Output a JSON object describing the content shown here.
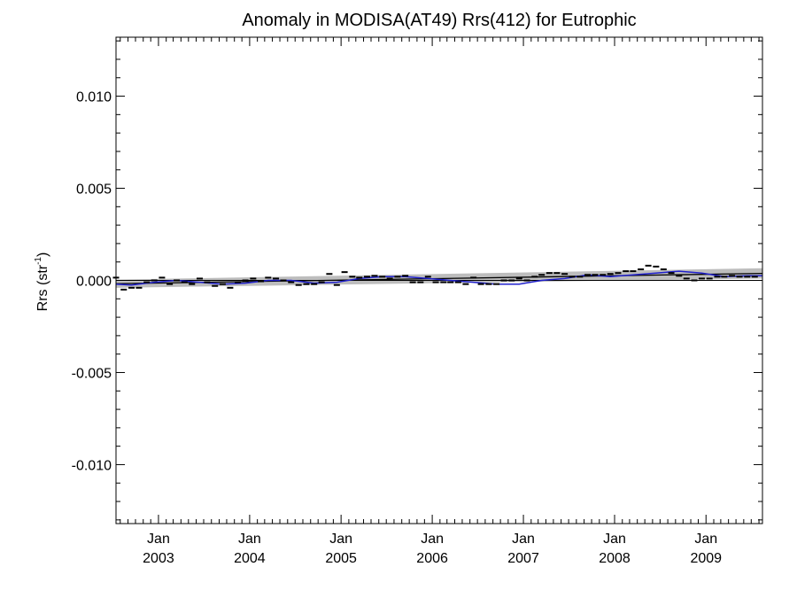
{
  "chart_data": {
    "type": "line",
    "title": "Anomaly in MODISA(AT49) Rrs(412) for Eutrophic",
    "ylabel": "Rrs (str",
    "ylabel_sup": "-1",
    "ylabel_close": ")",
    "xlabel": "",
    "xlim": [
      "2002-07-15",
      "2009-08-15"
    ],
    "ylim": [
      -0.0132,
      0.0132
    ],
    "y_ticks": [
      0.01,
      0.005,
      0.0,
      -0.005,
      -0.01
    ],
    "y_tick_labels": [
      "0.010",
      "0.005",
      "0.000",
      "-0.005",
      "-0.010"
    ],
    "x_ticks": [
      {
        "date": "2003-01-01",
        "month": "Jan",
        "year": "2003"
      },
      {
        "date": "2004-01-01",
        "month": "Jan",
        "year": "2004"
      },
      {
        "date": "2005-01-01",
        "month": "Jan",
        "year": "2005"
      },
      {
        "date": "2006-01-01",
        "month": "Jan",
        "year": "2006"
      },
      {
        "date": "2007-01-01",
        "month": "Jan",
        "year": "2007"
      },
      {
        "date": "2008-01-01",
        "month": "Jan",
        "year": "2008"
      },
      {
        "date": "2009-01-01",
        "month": "Jan",
        "year": "2009"
      }
    ],
    "grid": false,
    "zero_line": 0.0,
    "colors": {
      "smooth_line": "#2020cc",
      "trend_line": "#000000",
      "confidence_band": "#bdbdbd",
      "monthly_marker": "#000000",
      "axes": "#000000"
    },
    "series": [
      {
        "kind": "monthly_anomaly",
        "x": [
          "2002-07-15",
          "2002-08-15",
          "2002-09-15",
          "2002-10-15",
          "2002-11-15",
          "2002-12-15",
          "2003-01-15",
          "2003-02-15",
          "2003-03-15",
          "2003-04-15",
          "2003-05-15",
          "2003-06-15",
          "2003-07-15",
          "2003-08-15",
          "2003-09-15",
          "2003-10-15",
          "2003-11-15",
          "2003-12-15",
          "2004-01-15",
          "2004-02-15",
          "2004-03-15",
          "2004-04-15",
          "2004-05-15",
          "2004-06-15",
          "2004-07-15",
          "2004-08-15",
          "2004-09-15",
          "2004-10-15",
          "2004-11-15",
          "2004-12-15",
          "2005-01-15",
          "2005-02-15",
          "2005-03-15",
          "2005-04-15",
          "2005-05-15",
          "2005-06-15",
          "2005-07-15",
          "2005-08-15",
          "2005-09-15",
          "2005-10-15",
          "2005-11-15",
          "2005-12-15",
          "2006-01-15",
          "2006-02-15",
          "2006-03-15",
          "2006-04-15",
          "2006-05-15",
          "2006-06-15",
          "2006-07-15",
          "2006-08-15",
          "2006-09-15",
          "2006-10-15",
          "2006-11-15",
          "2006-12-15",
          "2007-01-15",
          "2007-02-15",
          "2007-03-15",
          "2007-04-15",
          "2007-05-15",
          "2007-06-15",
          "2007-07-15",
          "2007-08-15",
          "2007-09-15",
          "2007-10-15",
          "2007-11-15",
          "2007-12-15",
          "2008-01-15",
          "2008-02-15",
          "2008-03-15",
          "2008-04-15",
          "2008-05-15",
          "2008-06-15",
          "2008-07-15",
          "2008-08-15",
          "2008-09-15",
          "2008-10-15",
          "2008-11-15",
          "2008-12-15",
          "2009-01-15",
          "2009-02-15",
          "2009-03-15",
          "2009-04-15",
          "2009-05-15",
          "2009-06-15",
          "2009-07-15"
        ],
        "values": [
          0.00015,
          -0.0005,
          -0.0004,
          -0.0004,
          -0.0001,
          0.0,
          0.00015,
          -0.0002,
          0.0,
          -0.0001,
          -0.0002,
          0.0001,
          -0.0001,
          -0.0003,
          -0.0002,
          -0.0004,
          -0.0001,
          0.0,
          0.0001,
          -5e-05,
          0.00015,
          0.0001,
          0.0,
          -0.0001,
          -0.00025,
          -0.0002,
          -0.0002,
          -0.0001,
          0.00035,
          -0.00025,
          0.00045,
          0.0002,
          0.00015,
          0.0002,
          0.00025,
          0.0002,
          0.0001,
          0.0002,
          0.00025,
          -0.0001,
          -0.0001,
          0.0002,
          -0.0001,
          -0.0001,
          -0.0001,
          -0.0001,
          -0.0002,
          0.00015,
          -0.0002,
          -0.0002,
          -0.0002,
          0.0,
          0.0,
          0.0001,
          0.0,
          0.0002,
          0.0003,
          0.0004,
          0.0004,
          0.00035,
          0.0002,
          0.0002,
          0.0003,
          0.0003,
          0.0003,
          0.00035,
          0.0004,
          0.0005,
          0.0005,
          0.0006,
          0.0008,
          0.00075,
          0.0006,
          0.0004,
          0.00025,
          0.0001,
          0.0,
          0.0001,
          0.0001,
          0.0002,
          0.0002,
          0.00025,
          0.0002,
          0.0002,
          0.0002
        ]
      },
      {
        "kind": "smoothed",
        "x": [
          "2002-07-15",
          "2002-09-15",
          "2002-12-15",
          "2003-03-15",
          "2003-06-15",
          "2003-09-15",
          "2003-12-15",
          "2004-03-15",
          "2004-06-15",
          "2004-09-15",
          "2004-12-15",
          "2005-03-15",
          "2005-06-15",
          "2005-09-15",
          "2005-12-15",
          "2006-03-15",
          "2006-06-15",
          "2006-09-15",
          "2006-12-15",
          "2007-03-15",
          "2007-06-15",
          "2007-09-15",
          "2007-12-15",
          "2008-03-15",
          "2008-06-15",
          "2008-09-15",
          "2008-12-15",
          "2009-03-15",
          "2009-06-15",
          "2009-08-15"
        ],
        "values": [
          -0.0002,
          -0.00025,
          -0.0001,
          0.0,
          -0.0001,
          -0.0002,
          -0.00015,
          0.0,
          0.0,
          -0.00015,
          -0.0001,
          0.0001,
          0.0002,
          0.0002,
          0.0001,
          0.0,
          -0.0001,
          -0.0002,
          -0.0002,
          0.0,
          0.0001,
          0.0003,
          0.0002,
          0.0003,
          0.0004,
          0.0005,
          0.0004,
          0.0002,
          0.00025,
          0.00025
        ]
      },
      {
        "kind": "linear_trend",
        "x": [
          "2002-07-15",
          "2009-08-15"
        ],
        "values": [
          -0.00018,
          0.00038
        ],
        "band_halfwidth_start": 0.00022,
        "band_halfwidth_end": 0.00028
      }
    ]
  }
}
